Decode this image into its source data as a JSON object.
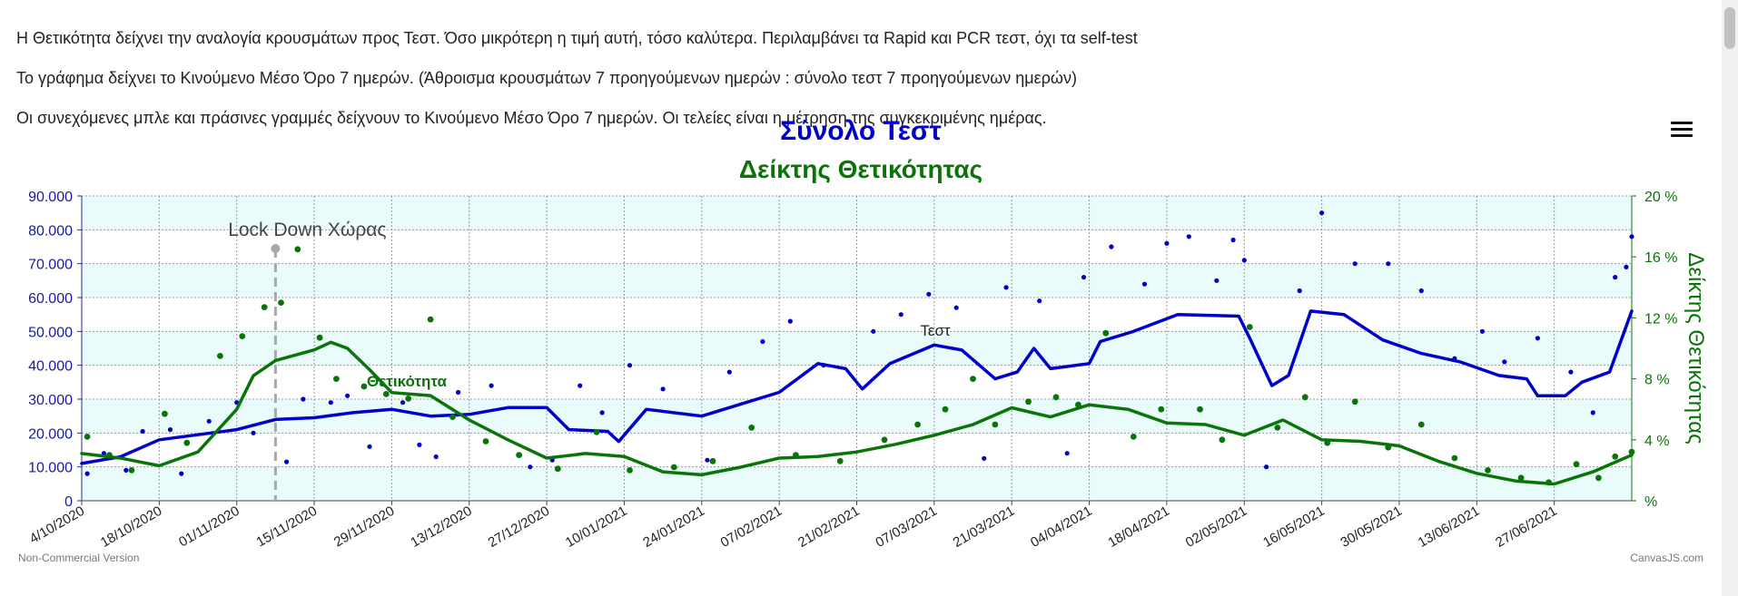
{
  "paragraphs": [
    "Η Θετικότητα δείχνει την αναλογία κρουσμάτων προς Τεστ. Όσο μικρότερη η τιμή αυτή, τόσο καλύτερα. Περιλαμβάνει τα Rapid και PCR τεστ, όχι τα self-test",
    "Το γράφημα δείχνει το Κινούμενο Μέσο Όρο 7 ημερών. (Άθροισμα κρουσμάτων 7 προηγούμενων ημερών : σύνολο τεστ 7 προηγούμενων ημερών)",
    "Οι συνεχόμενες μπλε και πράσινες γραμμές δείχνουν το Κινούμενο Μέσο Όρο 7 ημερών. Οι τελείες είναι η μέτρηση της συγκεκριμένης ημέρας."
  ],
  "colors": {
    "tests": "#0000cc",
    "positivity": "#097509",
    "band": "#e9fbfb",
    "grid": "#9a9a9a"
  },
  "menu_icon": "hamburger-menu-icon",
  "chart_data": {
    "type": "line",
    "title": "Σύνολο Τεστ",
    "subtitle": "Δείκτης Θετικότητας",
    "x_axis": {
      "start": "2020-10-04",
      "end": "2021-07-11",
      "tick_labels": [
        "4/10/2020",
        "18/10/2020",
        "01/11/2020",
        "15/11/2020",
        "29/11/2020",
        "13/12/2020",
        "27/12/2020",
        "10/01/2021",
        "24/01/2021",
        "07/02/2021",
        "21/02/2021",
        "07/03/2021",
        "21/03/2021",
        "04/04/2021",
        "18/04/2021",
        "02/05/2021",
        "16/05/2021",
        "30/05/2021",
        "13/06/2021",
        "27/06/2021"
      ]
    },
    "y_axis_left": {
      "min": 0,
      "max": 90000,
      "tick_labels": [
        "0",
        "10.000",
        "20.000",
        "30.000",
        "40.000",
        "50.000",
        "60.000",
        "70.000",
        "80.000",
        "90.000"
      ]
    },
    "y_axis_right": {
      "label": "Δείκτης Θετικότητας",
      "min": 0,
      "max": 20,
      "tick_labels": [
        "%",
        "4 %",
        "8 %",
        "12 %",
        "16 %",
        "20 %"
      ]
    },
    "grid": true,
    "annotation": {
      "label": "Lock Down Χώρας",
      "date": "2020-11-08"
    },
    "series": [
      {
        "name": "Τεστ",
        "axis": "left",
        "color": "#0000cc",
        "line_points": [
          [
            "2020-10-04",
            11000
          ],
          [
            "2020-10-11",
            13000
          ],
          [
            "2020-10-18",
            18000
          ],
          [
            "2020-10-25",
            19500
          ],
          [
            "2020-11-01",
            21000
          ],
          [
            "2020-11-08",
            24000
          ],
          [
            "2020-11-15",
            24500
          ],
          [
            "2020-11-22",
            26000
          ],
          [
            "2020-11-29",
            27000
          ],
          [
            "2020-12-06",
            25000
          ],
          [
            "2020-12-13",
            25500
          ],
          [
            "2020-12-20",
            27500
          ],
          [
            "2020-12-27",
            27500
          ],
          [
            "2020-12-31",
            21000
          ],
          [
            "2021-01-07",
            20500
          ],
          [
            "2021-01-09",
            17500
          ],
          [
            "2021-01-14",
            27000
          ],
          [
            "2021-01-24",
            25000
          ],
          [
            "2021-01-31",
            28500
          ],
          [
            "2021-02-07",
            32000
          ],
          [
            "2021-02-14",
            40500
          ],
          [
            "2021-02-19",
            39000
          ],
          [
            "2021-02-22",
            33000
          ],
          [
            "2021-02-27",
            40500
          ],
          [
            "2021-03-07",
            46000
          ],
          [
            "2021-03-12",
            44500
          ],
          [
            "2021-03-18",
            36000
          ],
          [
            "2021-03-22",
            38000
          ],
          [
            "2021-03-25",
            45000
          ],
          [
            "2021-03-28",
            39000
          ],
          [
            "2021-04-04",
            40500
          ],
          [
            "2021-04-06",
            47000
          ],
          [
            "2021-04-12",
            50000
          ],
          [
            "2021-04-20",
            55000
          ],
          [
            "2021-05-01",
            54500
          ],
          [
            "2021-05-03",
            48000
          ],
          [
            "2021-05-07",
            34000
          ],
          [
            "2021-05-10",
            37000
          ],
          [
            "2021-05-14",
            56000
          ],
          [
            "2021-05-20",
            55000
          ],
          [
            "2021-05-27",
            47500
          ],
          [
            "2021-06-03",
            43500
          ],
          [
            "2021-06-10",
            41000
          ],
          [
            "2021-06-17",
            37000
          ],
          [
            "2021-06-22",
            36000
          ],
          [
            "2021-06-24",
            31000
          ],
          [
            "2021-06-29",
            31000
          ],
          [
            "2021-07-02",
            35000
          ],
          [
            "2021-07-07",
            38000
          ],
          [
            "2021-07-11",
            56000
          ]
        ],
        "dots": [
          [
            "2020-10-05",
            8000
          ],
          [
            "2020-10-08",
            14000
          ],
          [
            "2020-10-12",
            9000
          ],
          [
            "2020-10-15",
            20500
          ],
          [
            "2020-10-20",
            21000
          ],
          [
            "2020-10-22",
            8000
          ],
          [
            "2020-10-27",
            23500
          ],
          [
            "2020-11-01",
            29000
          ],
          [
            "2020-11-04",
            20000
          ],
          [
            "2020-11-10",
            11500
          ],
          [
            "2020-11-13",
            30000
          ],
          [
            "2020-11-18",
            29000
          ],
          [
            "2020-11-21",
            31000
          ],
          [
            "2020-11-25",
            16000
          ],
          [
            "2020-12-01",
            29000
          ],
          [
            "2020-12-04",
            16500
          ],
          [
            "2020-12-07",
            13000
          ],
          [
            "2020-12-11",
            32000
          ],
          [
            "2020-12-17",
            34000
          ],
          [
            "2020-12-24",
            10000
          ],
          [
            "2020-12-28",
            12000
          ],
          [
            "2021-01-02",
            34000
          ],
          [
            "2021-01-06",
            26000
          ],
          [
            "2021-01-11",
            40000
          ],
          [
            "2021-01-17",
            33000
          ],
          [
            "2021-01-25",
            12000
          ],
          [
            "2021-01-29",
            38000
          ],
          [
            "2021-02-04",
            47000
          ],
          [
            "2021-02-09",
            53000
          ],
          [
            "2021-02-15",
            40000
          ],
          [
            "2021-02-24",
            50000
          ],
          [
            "2021-03-01",
            55000
          ],
          [
            "2021-03-06",
            61000
          ],
          [
            "2021-03-11",
            57000
          ],
          [
            "2021-03-16",
            12500
          ],
          [
            "2021-03-20",
            63000
          ],
          [
            "2021-03-26",
            59000
          ],
          [
            "2021-03-31",
            14000
          ],
          [
            "2021-04-03",
            66000
          ],
          [
            "2021-04-08",
            75000
          ],
          [
            "2021-04-14",
            64000
          ],
          [
            "2021-04-18",
            76000
          ],
          [
            "2021-04-22",
            78000
          ],
          [
            "2021-04-27",
            65000
          ],
          [
            "2021-04-30",
            77000
          ],
          [
            "2021-05-02",
            71000
          ],
          [
            "2021-05-06",
            10000
          ],
          [
            "2021-05-12",
            62000
          ],
          [
            "2021-05-16",
            85000
          ],
          [
            "2021-05-22",
            70000
          ],
          [
            "2021-05-28",
            70000
          ],
          [
            "2021-06-03",
            62000
          ],
          [
            "2021-06-09",
            42000
          ],
          [
            "2021-06-14",
            50000
          ],
          [
            "2021-06-18",
            41000
          ],
          [
            "2021-06-24",
            48000
          ],
          [
            "2021-06-30",
            38000
          ],
          [
            "2021-07-04",
            26000
          ],
          [
            "2021-07-08",
            66000
          ],
          [
            "2021-07-10",
            69000
          ],
          [
            "2021-07-11",
            78000
          ]
        ]
      },
      {
        "name": "Θετικότητα",
        "axis": "right",
        "color": "#097509",
        "line_points": [
          [
            "2020-10-04",
            3.1
          ],
          [
            "2020-10-11",
            2.8
          ],
          [
            "2020-10-18",
            2.3
          ],
          [
            "2020-10-25",
            3.2
          ],
          [
            "2020-11-01",
            6.0
          ],
          [
            "2020-11-04",
            8.2
          ],
          [
            "2020-11-08",
            9.2
          ],
          [
            "2020-11-15",
            9.9
          ],
          [
            "2020-11-18",
            10.4
          ],
          [
            "2020-11-21",
            10.0
          ],
          [
            "2020-11-25",
            8.6
          ],
          [
            "2020-11-29",
            7.1
          ],
          [
            "2020-12-06",
            6.9
          ],
          [
            "2020-12-13",
            5.3
          ],
          [
            "2020-12-20",
            4.0
          ],
          [
            "2020-12-27",
            2.8
          ],
          [
            "2021-01-03",
            3.1
          ],
          [
            "2021-01-10",
            2.9
          ],
          [
            "2021-01-17",
            1.9
          ],
          [
            "2021-01-24",
            1.7
          ],
          [
            "2021-01-31",
            2.2
          ],
          [
            "2021-02-07",
            2.8
          ],
          [
            "2021-02-14",
            2.9
          ],
          [
            "2021-02-21",
            3.2
          ],
          [
            "2021-02-28",
            3.7
          ],
          [
            "2021-03-07",
            4.3
          ],
          [
            "2021-03-14",
            5.0
          ],
          [
            "2021-03-21",
            6.1
          ],
          [
            "2021-03-28",
            5.5
          ],
          [
            "2021-04-04",
            6.3
          ],
          [
            "2021-04-11",
            6.0
          ],
          [
            "2021-04-18",
            5.1
          ],
          [
            "2021-04-25",
            5.0
          ],
          [
            "2021-05-02",
            4.3
          ],
          [
            "2021-05-09",
            5.3
          ],
          [
            "2021-05-16",
            4.0
          ],
          [
            "2021-05-23",
            3.9
          ],
          [
            "2021-05-30",
            3.6
          ],
          [
            "2021-06-06",
            2.6
          ],
          [
            "2021-06-13",
            1.8
          ],
          [
            "2021-06-20",
            1.3
          ],
          [
            "2021-06-27",
            1.1
          ],
          [
            "2021-07-04",
            1.9
          ],
          [
            "2021-07-11",
            3.0
          ]
        ],
        "dots": [
          [
            "2020-10-05",
            4.2
          ],
          [
            "2020-10-09",
            3.0
          ],
          [
            "2020-10-13",
            2.0
          ],
          [
            "2020-10-19",
            5.7
          ],
          [
            "2020-10-23",
            3.8
          ],
          [
            "2020-10-29",
            9.5
          ],
          [
            "2020-11-02",
            10.8
          ],
          [
            "2020-11-06",
            12.7
          ],
          [
            "2020-11-09",
            13.0
          ],
          [
            "2020-11-12",
            16.5
          ],
          [
            "2020-11-16",
            10.7
          ],
          [
            "2020-11-19",
            8.0
          ],
          [
            "2020-11-24",
            7.5
          ],
          [
            "2020-11-28",
            7.0
          ],
          [
            "2020-12-02",
            6.7
          ],
          [
            "2020-12-06",
            11.9
          ],
          [
            "2020-12-10",
            5.5
          ],
          [
            "2020-12-16",
            3.9
          ],
          [
            "2020-12-22",
            3.0
          ],
          [
            "2020-12-29",
            2.1
          ],
          [
            "2021-01-05",
            4.5
          ],
          [
            "2021-01-11",
            2.0
          ],
          [
            "2021-01-19",
            2.2
          ],
          [
            "2021-01-26",
            2.6
          ],
          [
            "2021-02-02",
            4.8
          ],
          [
            "2021-02-10",
            3.0
          ],
          [
            "2021-02-18",
            2.6
          ],
          [
            "2021-02-26",
            4.0
          ],
          [
            "2021-03-04",
            5.0
          ],
          [
            "2021-03-09",
            6.0
          ],
          [
            "2021-03-14",
            8.0
          ],
          [
            "2021-03-18",
            5.0
          ],
          [
            "2021-03-24",
            6.5
          ],
          [
            "2021-03-29",
            6.8
          ],
          [
            "2021-04-02",
            6.3
          ],
          [
            "2021-04-07",
            11.0
          ],
          [
            "2021-04-12",
            4.2
          ],
          [
            "2021-04-17",
            6.0
          ],
          [
            "2021-04-24",
            6.0
          ],
          [
            "2021-04-28",
            4.0
          ],
          [
            "2021-05-03",
            11.4
          ],
          [
            "2021-05-08",
            4.8
          ],
          [
            "2021-05-13",
            6.8
          ],
          [
            "2021-05-17",
            3.8
          ],
          [
            "2021-05-22",
            6.5
          ],
          [
            "2021-05-28",
            3.5
          ],
          [
            "2021-06-03",
            5.0
          ],
          [
            "2021-06-09",
            2.8
          ],
          [
            "2021-06-15",
            2.0
          ],
          [
            "2021-06-21",
            1.5
          ],
          [
            "2021-06-26",
            1.2
          ],
          [
            "2021-07-01",
            2.4
          ],
          [
            "2021-07-05",
            1.5
          ],
          [
            "2021-07-08",
            2.9
          ],
          [
            "2021-07-11",
            3.2
          ]
        ]
      }
    ],
    "series_labels": [
      {
        "series": "Τεστ",
        "text": "Τεστ"
      },
      {
        "series": "Θετικότητα",
        "text": "Θετικότητα"
      }
    ],
    "credits": {
      "left": "Non-Commercial Version",
      "right": "CanvasJS.com"
    }
  }
}
